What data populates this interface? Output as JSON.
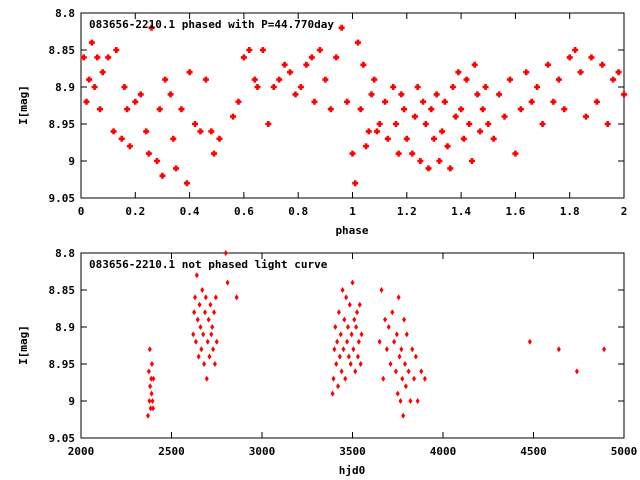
{
  "chart_data": [
    {
      "type": "scatter",
      "title": "083656-2210.1 phased with P=44.770day",
      "xlabel": "phase",
      "ylabel": "I[mag]",
      "xlim": [
        0,
        2
      ],
      "ylim": [
        8.8,
        9.05
      ],
      "y_inverted": true,
      "xticks": [
        "0",
        "0.2",
        "0.4",
        "0.6",
        "0.8",
        "1",
        "1.2",
        "1.4",
        "1.6",
        "1.8",
        "2"
      ],
      "yticks": [
        "8.8",
        "8.85",
        "8.9",
        "8.95",
        "9",
        "9.05"
      ],
      "grid": false,
      "marker_color": "#ff0000",
      "series": [
        {
          "x": [
            0.01,
            0.02,
            0.03,
            0.04,
            0.05,
            0.06,
            0.07,
            0.08,
            0.1,
            0.12,
            0.13,
            0.15,
            0.16,
            0.17,
            0.18,
            0.2,
            0.22,
            0.24,
            0.25,
            0.26,
            0.28,
            0.29,
            0.3,
            0.31,
            0.33,
            0.34,
            0.35,
            0.37,
            0.39,
            0.4,
            0.42,
            0.44,
            0.46,
            0.48,
            0.49,
            0.51,
            0.56,
            0.58,
            0.6,
            0.62,
            0.64,
            0.65,
            0.67,
            0.69,
            0.71,
            0.73,
            0.75,
            0.77,
            0.79,
            0.81,
            0.83,
            0.85,
            0.86,
            0.88,
            0.9,
            0.92,
            0.94,
            0.96,
            0.98,
            1.0,
            1.01,
            1.02,
            1.03,
            1.04,
            1.05,
            1.06,
            1.07,
            1.08,
            1.09,
            1.1,
            1.12,
            1.13,
            1.15,
            1.16,
            1.17,
            1.18,
            1.19,
            1.2,
            1.22,
            1.23,
            1.24,
            1.25,
            1.26,
            1.27,
            1.28,
            1.29,
            1.3,
            1.31,
            1.32,
            1.33,
            1.34,
            1.35,
            1.36,
            1.37,
            1.38,
            1.39,
            1.4,
            1.41,
            1.42,
            1.43,
            1.44,
            1.45,
            1.46,
            1.47,
            1.48,
            1.49,
            1.5,
            1.52,
            1.54,
            1.56,
            1.58,
            1.6,
            1.62,
            1.64,
            1.66,
            1.68,
            1.7,
            1.72,
            1.74,
            1.76,
            1.78,
            1.8,
            1.82,
            1.84,
            1.86,
            1.88,
            1.9,
            1.92,
            1.94,
            1.96,
            1.98,
            2.0
          ],
          "y": [
            8.86,
            8.92,
            8.89,
            8.84,
            8.9,
            8.86,
            8.93,
            8.88,
            8.86,
            8.96,
            8.85,
            8.97,
            8.9,
            8.93,
            8.98,
            8.92,
            8.91,
            8.96,
            8.99,
            8.82,
            9.0,
            8.93,
            9.02,
            8.89,
            8.91,
            8.97,
            9.01,
            8.93,
            9.03,
            8.88,
            8.95,
            8.96,
            8.89,
            8.96,
            8.99,
            8.97,
            8.94,
            8.92,
            8.86,
            8.85,
            8.89,
            8.9,
            8.85,
            8.95,
            8.9,
            8.89,
            8.87,
            8.88,
            8.91,
            8.9,
            8.87,
            8.86,
            8.92,
            8.85,
            8.89,
            8.93,
            8.86,
            8.82,
            8.92,
            8.99,
            9.03,
            8.84,
            8.93,
            8.87,
            8.98,
            8.96,
            8.91,
            8.89,
            8.96,
            8.95,
            8.92,
            8.97,
            8.9,
            8.95,
            8.99,
            8.91,
            8.93,
            8.97,
            8.99,
            8.94,
            8.9,
            9.0,
            8.92,
            8.95,
            9.01,
            8.93,
            8.97,
            8.91,
            9.0,
            8.96,
            8.92,
            8.98,
            9.01,
            8.9,
            8.94,
            8.88,
            8.93,
            8.97,
            8.89,
            8.95,
            9.0,
            8.87,
            8.91,
            8.96,
            8.93,
            8.9,
            8.95,
            8.97,
            8.91,
            8.94,
            8.89,
            8.99,
            8.93,
            8.88,
            8.92,
            8.9,
            8.95,
            8.87,
            8.92,
            8.89,
            8.93,
            8.86,
            8.85,
            8.88,
            8.94,
            8.86,
            8.92,
            8.87,
            8.95,
            8.89,
            8.88,
            8.91
          ]
        }
      ]
    },
    {
      "type": "scatter",
      "title": "083656-2210.1 not phased light curve",
      "xlabel": "hjd0",
      "ylabel": "I[mag]",
      "xlim": [
        2000,
        5000
      ],
      "ylim": [
        8.8,
        9.05
      ],
      "y_inverted": true,
      "xticks": [
        "2000",
        "2500",
        "3000",
        "3500",
        "4000",
        "4500",
        "5000"
      ],
      "yticks": [
        "8.8",
        "8.85",
        "8.9",
        "8.95",
        "9",
        "9.05"
      ],
      "grid": false,
      "marker_color": "#ff0000",
      "series": [
        {
          "x": [
            2370,
            2375,
            2378,
            2380,
            2382,
            2385,
            2388,
            2390,
            2392,
            2395,
            2398,
            2400,
            2620,
            2625,
            2630,
            2635,
            2640,
            2645,
            2650,
            2655,
            2660,
            2665,
            2670,
            2675,
            2680,
            2685,
            2690,
            2695,
            2700,
            2705,
            2710,
            2715,
            2720,
            2725,
            2730,
            2735,
            2740,
            2745,
            2750,
            2800,
            2810,
            2860,
            3390,
            3395,
            3400,
            3405,
            3410,
            3415,
            3420,
            3425,
            3430,
            3435,
            3440,
            3445,
            3450,
            3455,
            3460,
            3465,
            3470,
            3475,
            3480,
            3485,
            3490,
            3495,
            3500,
            3505,
            3510,
            3515,
            3520,
            3525,
            3530,
            3535,
            3540,
            3545,
            3550,
            3650,
            3660,
            3670,
            3680,
            3690,
            3700,
            3710,
            3720,
            3730,
            3740,
            3745,
            3750,
            3755,
            3760,
            3765,
            3770,
            3775,
            3780,
            3785,
            3790,
            3795,
            3800,
            3810,
            3820,
            3830,
            3840,
            3850,
            3860,
            3880,
            3900,
            4480,
            4640,
            4740,
            4890
          ],
          "y": [
            9.02,
            8.96,
            9.0,
            8.93,
            8.98,
            9.01,
            8.97,
            8.99,
            8.95,
            9.0,
            9.01,
            8.97,
            8.91,
            8.88,
            8.86,
            8.92,
            8.83,
            8.89,
            8.94,
            8.87,
            8.9,
            8.93,
            8.85,
            8.91,
            8.95,
            8.88,
            8.86,
            8.97,
            8.92,
            8.89,
            8.94,
            8.87,
            8.91,
            8.9,
            8.93,
            8.88,
            8.95,
            8.86,
            8.92,
            8.8,
            8.84,
            8.86,
            8.99,
            8.97,
            8.93,
            8.9,
            8.95,
            8.92,
            8.98,
            8.88,
            8.94,
            8.91,
            8.96,
            8.85,
            8.93,
            8.89,
            8.97,
            8.86,
            8.92,
            8.9,
            8.94,
            8.87,
            8.95,
            8.91,
            8.84,
            8.93,
            8.89,
            8.96,
            8.9,
            8.88,
            8.94,
            8.92,
            8.87,
            8.95,
            8.91,
            8.92,
            8.85,
            8.97,
            8.89,
            8.93,
            8.9,
            8.95,
            8.88,
            8.92,
            8.96,
            8.91,
            8.99,
            8.86,
            8.94,
            9.0,
            8.93,
            8.97,
            9.02,
            8.89,
            8.95,
            8.98,
            8.91,
            8.96,
            9.0,
            8.93,
            8.97,
            8.94,
            9.0,
            8.96,
            8.97,
            8.92,
            8.93,
            8.96,
            8.93
          ]
        }
      ]
    }
  ]
}
